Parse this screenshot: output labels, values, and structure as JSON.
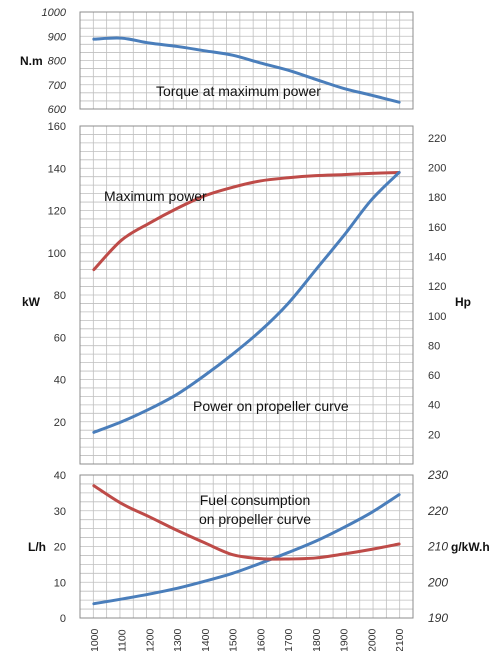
{
  "colors": {
    "blue": "#4a7ebb",
    "red": "#be4b48",
    "red_text": "#c0392b"
  },
  "chart_data": [
    {
      "type": "line",
      "x": [
        1000,
        1100,
        1200,
        1300,
        1400,
        1500,
        1600,
        1700,
        1800,
        1900,
        2000,
        2100
      ],
      "series": [
        {
          "name": "Torque at maximum power",
          "color": "#4a7ebb",
          "y": [
            888,
            892,
            872,
            858,
            840,
            822,
            790,
            760,
            722,
            685,
            657,
            628
          ]
        }
      ],
      "ylabel": "N.m",
      "ylim": [
        600,
        1000
      ],
      "yticks": [
        "600",
        "700",
        "800",
        "900",
        "1000"
      ],
      "grid": true
    },
    {
      "type": "line",
      "x": [
        1000,
        1100,
        1200,
        1300,
        1400,
        1500,
        1600,
        1700,
        1800,
        1900,
        2000,
        2100
      ],
      "series": [
        {
          "name": "Maximum power",
          "color": "#be4b48",
          "y": [
            92,
            106,
            114,
            121,
            127,
            131,
            134,
            135.5,
            136.5,
            137,
            137.6,
            138
          ]
        },
        {
          "name": "Power on propeller curve",
          "color": "#4a7ebb",
          "y": [
            15,
            20,
            26,
            33,
            42,
            52,
            63,
            76,
            92,
            108,
            125,
            138
          ]
        }
      ],
      "ylabel": "kW",
      "ylim": [
        0,
        160
      ],
      "yticks": [
        "20",
        "40",
        "60",
        "80",
        "100",
        "120",
        "140",
        "160"
      ],
      "y2label": "Hp",
      "y2ticks": [
        "20",
        "40",
        "60",
        "80",
        "100",
        "120",
        "140",
        "160",
        "180",
        "200",
        "220"
      ],
      "grid": true
    },
    {
      "type": "line",
      "x": [
        1000,
        1100,
        1200,
        1300,
        1400,
        1500,
        1600,
        1700,
        1800,
        1900,
        2000,
        2100
      ],
      "series": [
        {
          "name": "Fuel consumption on propeller curve",
          "color": "#4a7ebb",
          "y": [
            4,
            5.3,
            6.7,
            8.3,
            10.3,
            12.5,
            15.3,
            18.3,
            21.5,
            25.3,
            29.5,
            34.5
          ]
        },
        {
          "name": "g/kW.h",
          "color": "#be4b48",
          "y2": [
            227,
            222,
            218.3,
            214.5,
            211,
            207.7,
            206.6,
            206.5,
            206.8,
            207.9,
            209.2,
            210.7
          ]
        }
      ],
      "ylabel": "L/h",
      "ylim": [
        0,
        40
      ],
      "yticks": [
        "0",
        "10",
        "20",
        "30",
        "40"
      ],
      "y2label": "g/kW.h",
      "y2lim": [
        190,
        230
      ],
      "y2ticks": [
        "190",
        "200",
        "210",
        "220",
        "230"
      ],
      "xticks": [
        "1000",
        "1100",
        "1200",
        "1300",
        "1400",
        "1500",
        "1600",
        "1700",
        "1800",
        "1900",
        "2000",
        "2100"
      ],
      "grid": true
    }
  ],
  "annotations": {
    "torque": "Torque at maximum power",
    "max_power": "Maximum power",
    "prop_power": "Power on propeller curve",
    "fuel_line1": "Fuel consumption",
    "fuel_line2": "on propeller curve"
  }
}
